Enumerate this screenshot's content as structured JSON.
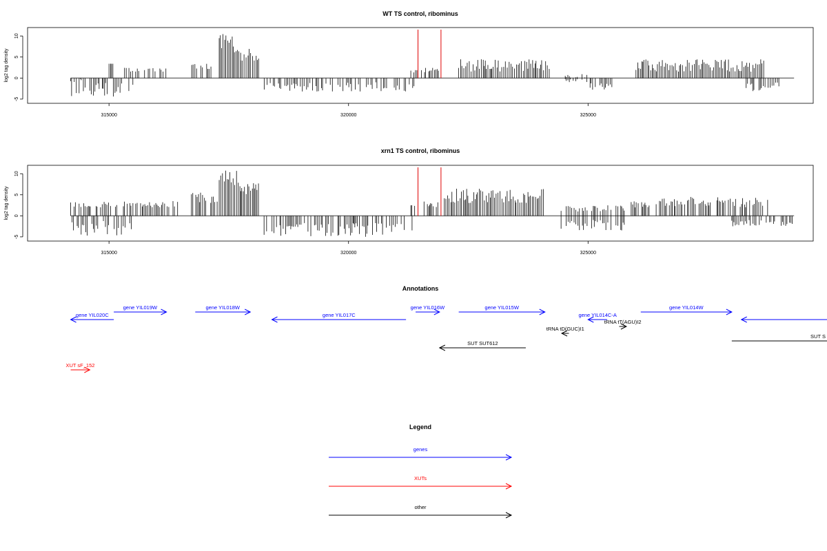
{
  "chart_data": [
    {
      "type": "bar",
      "title": "WT TS control, ribominus",
      "ylabel": "log2 tag density",
      "xlabel": "",
      "xlim": [
        313300,
        329700
      ],
      "ylim": [
        -6,
        12
      ],
      "x_ticks": [
        315000,
        320000,
        325000
      ],
      "y_ticks": [
        -5,
        0,
        5,
        10
      ],
      "grid": false,
      "series": [
        {
          "description_values": "per-position log2 tag density (plus strand up, minus strand down)",
          "segments": [
            {
              "x": [
                314200,
                315500
              ],
              "y_min": [
                -4.5,
                0
              ],
              "y_max": [
                0,
                0
              ]
            },
            {
              "x": [
                315000,
                315100
              ],
              "y_min": [
                0,
                0
              ],
              "y_max": [
                3.4,
                3.4
              ]
            },
            {
              "x": [
                315300,
                316200
              ],
              "y_min": [
                0,
                0
              ],
              "y_max": [
                1.5,
                2.5
              ]
            },
            {
              "x": [
                316700,
                317300
              ],
              "y_min": [
                0,
                0
              ],
              "y_max": [
                2,
                3.5
              ]
            },
            {
              "x": [
                317300,
                317750
              ],
              "y_min": [
                0,
                0
              ],
              "y_max": [
                6,
                10.5
              ]
            },
            {
              "x": [
                317750,
                318150
              ],
              "y_min": [
                0,
                0
              ],
              "y_max": [
                4,
                7
              ]
            },
            {
              "x": [
                318200,
                321500
              ],
              "y_min": [
                -3.2,
                -1
              ],
              "y_max": [
                0,
                0
              ]
            },
            {
              "x": [
                321300,
                321900
              ],
              "y_min": [
                0,
                0
              ],
              "y_max": [
                1,
                2.5
              ]
            },
            {
              "x": [
                322300,
                324200
              ],
              "y_min": [
                0,
                0
              ],
              "y_max": [
                1.5,
                4.5
              ]
            },
            {
              "x": [
                324500,
                325000
              ],
              "y_min": [
                -1,
                0
              ],
              "y_max": [
                1,
                0
              ]
            },
            {
              "x": [
                325000,
                325500
              ],
              "y_min": [
                -3,
                -1
              ],
              "y_max": [
                0,
                0
              ]
            },
            {
              "x": [
                326000,
                328700
              ],
              "y_min": [
                0,
                0
              ],
              "y_max": [
                1.5,
                4.5
              ]
            },
            {
              "x": [
                328300,
                329000
              ],
              "y_min": [
                -3.5,
                -1
              ],
              "y_max": [
                0,
                0
              ]
            }
          ]
        }
      ],
      "markers": [
        321450,
        321930
      ],
      "marker_color": "#e00000"
    },
    {
      "type": "bar",
      "title": "xrn1 TS control, ribominus",
      "ylabel": "log2 tag density",
      "xlabel": "",
      "xlim": [
        313300,
        329700
      ],
      "ylim": [
        -6,
        12
      ],
      "x_ticks": [
        315000,
        320000,
        325000
      ],
      "y_ticks": [
        -5,
        0,
        5,
        10
      ],
      "grid": false,
      "series": [
        {
          "description_values": "per-position log2 tag density (plus strand up, minus strand down)",
          "segments": [
            {
              "x": [
                314200,
                315500
              ],
              "y_min": [
                -5,
                -1
              ],
              "y_max": [
                0,
                0
              ]
            },
            {
              "x": [
                314200,
                315200
              ],
              "y_min": [
                0,
                0
              ],
              "y_max": [
                2,
                3.5
              ]
            },
            {
              "x": [
                315300,
                316500
              ],
              "y_min": [
                0,
                0
              ],
              "y_max": [
                2,
                3.5
              ]
            },
            {
              "x": [
                316700,
                317300
              ],
              "y_min": [
                0,
                0
              ],
              "y_max": [
                3,
                5.5
              ]
            },
            {
              "x": [
                317300,
                317750
              ],
              "y_min": [
                0,
                0
              ],
              "y_max": [
                7,
                11
              ]
            },
            {
              "x": [
                317750,
                318150
              ],
              "y_min": [
                0,
                0
              ],
              "y_max": [
                5,
                8
              ]
            },
            {
              "x": [
                318150,
                321400
              ],
              "y_min": [
                -5,
                -1.5
              ],
              "y_max": [
                0,
                0
              ]
            },
            {
              "x": [
                321300,
                321900
              ],
              "y_min": [
                0,
                0
              ],
              "y_max": [
                2,
                3.5
              ]
            },
            {
              "x": [
                322000,
                324100
              ],
              "y_min": [
                0,
                0
              ],
              "y_max": [
                3,
                6.5
              ]
            },
            {
              "x": [
                324400,
                325800
              ],
              "y_min": [
                -3.5,
                -1
              ],
              "y_max": [
                1,
                2.5
              ]
            },
            {
              "x": [
                325900,
                328800
              ],
              "y_min": [
                0,
                0
              ],
              "y_max": [
                2,
                4.5
              ]
            },
            {
              "x": [
                328000,
                329300
              ],
              "y_min": [
                -2.5,
                -1
              ],
              "y_max": [
                0,
                0
              ]
            }
          ]
        }
      ],
      "markers": [
        321450,
        321930
      ],
      "marker_color": "#e00000"
    }
  ],
  "annotations": {
    "title": "Annotations",
    "colors": {
      "gene": "#0000ff",
      "xut": "#ff0000",
      "other": "#000000"
    },
    "items": [
      {
        "label": "gene YIL020C",
        "cls": "gene",
        "x1": 315100,
        "x2": 314200,
        "yrow": 1
      },
      {
        "label": "gene YIL019W",
        "cls": "gene",
        "x1": 315100,
        "x2": 316200,
        "yrow": 0
      },
      {
        "label": "gene YIL018W",
        "cls": "gene",
        "x1": 316800,
        "x2": 317950,
        "yrow": 0
      },
      {
        "label": "gene YIL017C",
        "cls": "gene",
        "x1": 321200,
        "x2": 318400,
        "yrow": 1
      },
      {
        "label": "gene YIL016W",
        "cls": "gene",
        "x1": 321400,
        "x2": 321900,
        "yrow": 0
      },
      {
        "label": "gene YIL015W",
        "cls": "gene",
        "x1": 322300,
        "x2": 324100,
        "yrow": 0
      },
      {
        "label": "gene YIL014C-A",
        "cls": "gene",
        "x1": 325400,
        "x2": 325000,
        "yrow": 1
      },
      {
        "label": "gene YIL014W",
        "cls": "gene",
        "x1": 326100,
        "x2": 328000,
        "yrow": 0
      },
      {
        "label": "",
        "cls": "gene",
        "x1": 330000,
        "x2": 328200,
        "yrow": 1
      },
      {
        "label": "tRNA tD(GUC)I1",
        "cls": "other",
        "x1": 324600,
        "x2": 324450,
        "yrow": 3
      },
      {
        "label": "tRNA tT(AGU)I2",
        "cls": "other",
        "x1": 325650,
        "x2": 325800,
        "yrow": 2
      },
      {
        "label": "SUT SUT612",
        "cls": "other",
        "x1": 323700,
        "x2": 321900,
        "yrow": 5
      },
      {
        "label": "SUT S",
        "cls": "other",
        "x1": 328000,
        "x2": 330000,
        "yrow": 4,
        "noarrow": true
      },
      {
        "label": "XUT sF_152",
        "cls": "xut",
        "x1": 314200,
        "x2": 314600,
        "yrow": 8
      }
    ]
  },
  "legend": {
    "title": "Legend",
    "items": [
      {
        "label": "genes",
        "cls": "gene"
      },
      {
        "label": "XUTs",
        "cls": "xut"
      },
      {
        "label": "other",
        "cls": "other"
      }
    ]
  }
}
